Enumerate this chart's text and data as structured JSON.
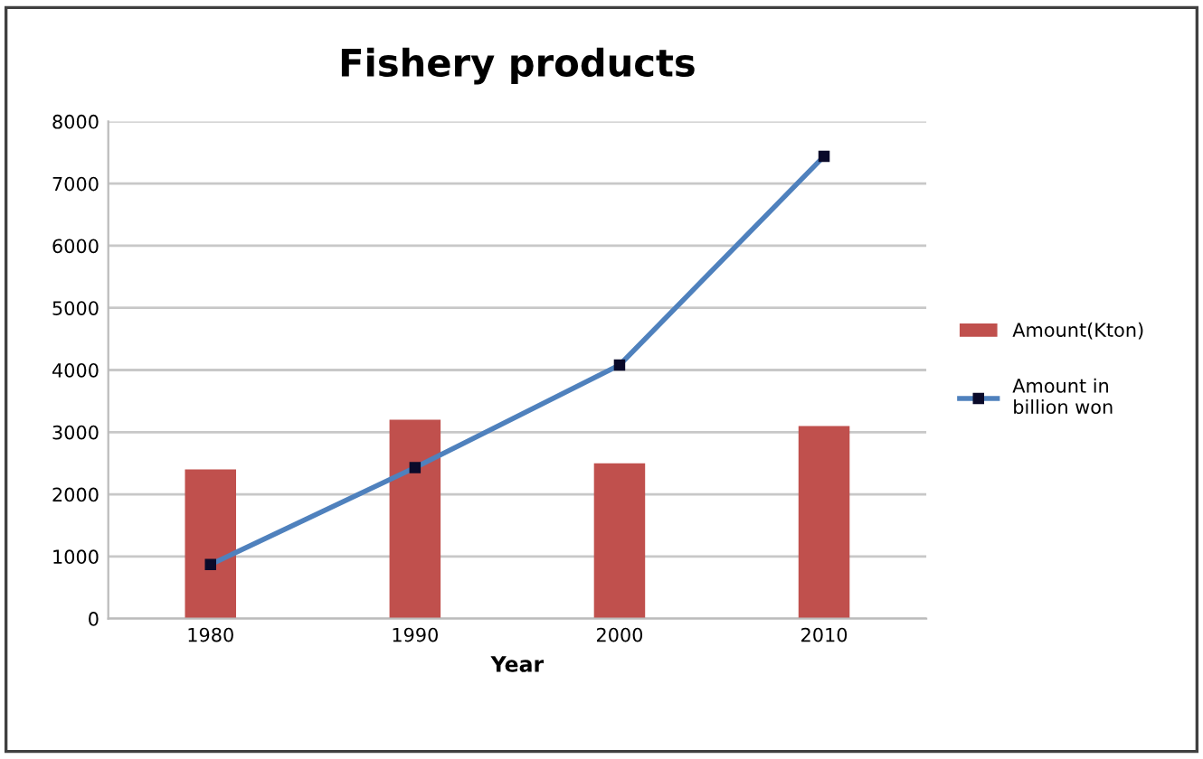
{
  "chart_data": {
    "type": "bar",
    "title": "Fishery products",
    "xlabel": "Year",
    "categories": [
      "1980",
      "1990",
      "2000",
      "2010"
    ],
    "series": [
      {
        "name": "Amount(Kton)",
        "color": "#c0504d",
        "values": [
          2400,
          3200,
          2500,
          3100
        ]
      },
      {
        "name": "Amount in\nbillion won",
        "color": "#4f81bd",
        "type": "line",
        "marker": "square",
        "values": [
          870,
          2430,
          4080,
          7440
        ]
      }
    ],
    "ylim": [
      0,
      8000
    ],
    "yticks": [
      0,
      1000,
      2000,
      3000,
      4000,
      5000,
      6000,
      7000,
      8000
    ],
    "grid": "y",
    "legend": "right"
  }
}
